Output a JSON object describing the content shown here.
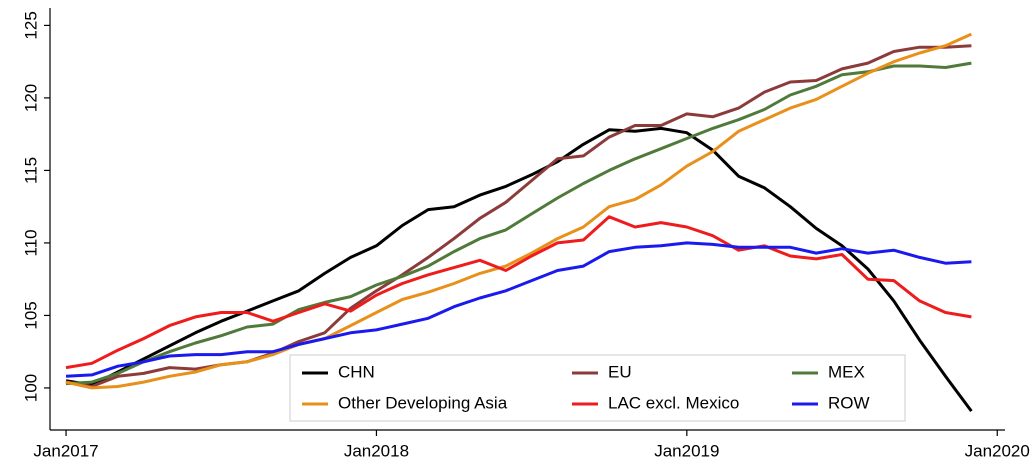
{
  "chart_data": {
    "type": "line",
    "x": [
      "Jan2017",
      "Feb2017",
      "Mar2017",
      "Apr2017",
      "May2017",
      "Jun2017",
      "Jul2017",
      "Aug2017",
      "Sep2017",
      "Oct2017",
      "Nov2017",
      "Dec2017",
      "Jan2018",
      "Feb2018",
      "Mar2018",
      "Apr2018",
      "May2018",
      "Jun2018",
      "Jul2018",
      "Aug2018",
      "Sep2018",
      "Oct2018",
      "Nov2018",
      "Dec2018",
      "Jan2019",
      "Feb2019",
      "Mar2019",
      "Apr2019",
      "May2019",
      "Jun2019",
      "Jul2019",
      "Aug2019",
      "Sep2019",
      "Oct2019",
      "Nov2019",
      "Dec2019"
    ],
    "xlim": [
      "Jan2017",
      "Jan2020"
    ],
    "xticks": [
      "Jan2017",
      "Jan2018",
      "Jan2019",
      "Jan2020"
    ],
    "ylim": [
      97.1,
      126.2
    ],
    "yticks": [
      100,
      105,
      110,
      115,
      120,
      125
    ],
    "grid": false,
    "legend": "bottom",
    "series": [
      {
        "name": "CHN",
        "color": "#000000",
        "values": [
          100.5,
          100.2,
          101.1,
          102.0,
          102.9,
          103.8,
          104.6,
          105.3,
          106.0,
          106.7,
          107.9,
          109.0,
          109.8,
          111.2,
          112.3,
          112.5,
          113.3,
          113.9,
          114.7,
          115.6,
          116.8,
          117.8,
          117.7,
          117.9,
          117.6,
          116.4,
          114.6,
          113.8,
          112.5,
          111.0,
          109.8,
          108.2,
          106.0,
          103.3,
          100.8,
          98.4
        ]
      },
      {
        "name": "EU",
        "color": "#8c3b3b",
        "values": [
          100.4,
          100.1,
          100.8,
          101.0,
          101.4,
          101.3,
          101.6,
          101.8,
          102.4,
          103.2,
          103.8,
          105.5,
          106.7,
          107.8,
          109.0,
          110.3,
          111.7,
          112.8,
          114.3,
          115.8,
          116.0,
          117.3,
          118.1,
          118.1,
          118.9,
          118.7,
          119.3,
          120.4,
          121.1,
          121.2,
          122.0,
          122.4,
          123.2,
          123.5,
          123.5,
          123.6
        ]
      },
      {
        "name": "MEX",
        "color": "#4f7a3a",
        "values": [
          100.3,
          100.4,
          101.0,
          101.8,
          102.5,
          103.1,
          103.6,
          104.2,
          104.4,
          105.4,
          105.9,
          106.3,
          107.1,
          107.7,
          108.4,
          109.4,
          110.3,
          110.9,
          112.0,
          113.1,
          114.1,
          115.0,
          115.8,
          116.5,
          117.2,
          117.9,
          118.5,
          119.2,
          120.2,
          120.8,
          121.6,
          121.8,
          122.2,
          122.2,
          122.1,
          122.4
        ]
      },
      {
        "name": "Other Developing Asia",
        "color": "#e8901a",
        "values": [
          100.4,
          100.0,
          100.1,
          100.4,
          100.8,
          101.1,
          101.6,
          101.8,
          102.3,
          103.0,
          103.4,
          104.3,
          105.2,
          106.1,
          106.6,
          107.2,
          107.9,
          108.4,
          109.3,
          110.3,
          111.1,
          112.5,
          113.0,
          114.0,
          115.3,
          116.3,
          117.7,
          118.5,
          119.3,
          119.9,
          120.8,
          121.7,
          122.5,
          123.1,
          123.6,
          124.4
        ]
      },
      {
        "name": "LAC excl. Mexico",
        "color": "#ee1c1c",
        "values": [
          101.4,
          101.7,
          102.6,
          103.4,
          104.3,
          104.9,
          105.2,
          105.2,
          104.6,
          105.2,
          105.8,
          105.3,
          106.4,
          107.2,
          107.8,
          108.3,
          108.8,
          108.1,
          109.1,
          110.0,
          110.2,
          111.8,
          111.1,
          111.4,
          111.1,
          110.5,
          109.5,
          109.8,
          109.1,
          108.9,
          109.2,
          107.5,
          107.4,
          106.0,
          105.2,
          104.9
        ]
      },
      {
        "name": "ROW",
        "color": "#1a1aee",
        "values": [
          100.8,
          100.9,
          101.5,
          101.8,
          102.2,
          102.3,
          102.3,
          102.5,
          102.5,
          103.0,
          103.4,
          103.8,
          104.0,
          104.4,
          104.8,
          105.6,
          106.2,
          106.7,
          107.4,
          108.1,
          108.4,
          109.4,
          109.7,
          109.8,
          110.0,
          109.9,
          109.7,
          109.7,
          109.7,
          109.3,
          109.6,
          109.3,
          109.5,
          109.0,
          108.6,
          108.7
        ]
      }
    ]
  }
}
